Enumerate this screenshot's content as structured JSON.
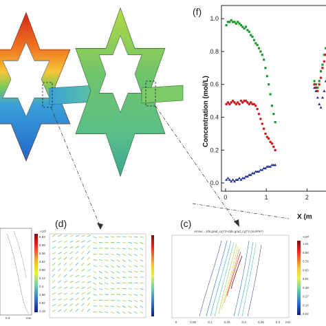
{
  "colors": {
    "hot": "#d7251d",
    "warm": "#f0a030",
    "mid": "#9ed14a",
    "cool": "#3aa0d8",
    "cold": "#2166c9",
    "series_green": "#1a9a2a",
    "series_red": "#cc1f1f",
    "series_blue": "#1c2c8c"
  },
  "panels": {
    "f": {
      "label": "(f)",
      "chart_data": {
        "type": "scatter",
        "ylabel": "Concentration (mol/L)",
        "xlabel": "X (m",
        "xticks": [
          "0",
          "1",
          "2"
        ],
        "yticks": [
          "0.0",
          "0.2",
          "0.4",
          "0.6",
          "0.8",
          "1.0"
        ],
        "xlim": [
          -0.1,
          2.6
        ],
        "ylim": [
          -0.05,
          1.08
        ],
        "series": [
          {
            "color": "series_green",
            "x": [
              0.02,
              0.06,
              0.1,
              0.14,
              0.18,
              0.22,
              0.26,
              0.3,
              0.34,
              0.38,
              0.42,
              0.46,
              0.5,
              0.54,
              0.58,
              0.62,
              0.66,
              0.7,
              0.74,
              0.78,
              0.82,
              0.86,
              0.9,
              0.94,
              0.98,
              1.02,
              1.06,
              1.1,
              1.14,
              1.18,
              1.22
            ],
            "y": [
              0.96,
              0.98,
              0.98,
              0.99,
              0.98,
              0.98,
              0.97,
              0.98,
              0.97,
              0.96,
              0.95,
              0.94,
              0.95,
              0.93,
              0.92,
              0.9,
              0.89,
              0.87,
              0.85,
              0.84,
              0.82,
              0.8,
              0.78,
              0.75,
              0.7,
              0.65,
              0.6,
              0.54,
              0.47,
              0.42,
              0.37
            ]
          },
          {
            "color": "series_red",
            "x": [
              0.02,
              0.06,
              0.1,
              0.14,
              0.18,
              0.22,
              0.26,
              0.3,
              0.34,
              0.38,
              0.42,
              0.46,
              0.5,
              0.54,
              0.58,
              0.62,
              0.66,
              0.7,
              0.74,
              0.78,
              0.82,
              0.86,
              0.9,
              0.94,
              0.98,
              1.02,
              1.06,
              1.1,
              1.14,
              1.18,
              1.22
            ],
            "y": [
              0.48,
              0.49,
              0.48,
              0.49,
              0.5,
              0.49,
              0.48,
              0.49,
              0.48,
              0.5,
              0.49,
              0.5,
              0.5,
              0.49,
              0.48,
              0.49,
              0.48,
              0.48,
              0.47,
              0.45,
              0.42,
              0.39,
              0.36,
              0.33,
              0.3,
              0.28,
              0.27,
              0.25,
              0.24,
              0.22,
              0.2
            ]
          },
          {
            "color": "series_blue",
            "x": [
              0.02,
              0.06,
              0.1,
              0.14,
              0.18,
              0.22,
              0.26,
              0.3,
              0.34,
              0.38,
              0.42,
              0.46,
              0.5,
              0.54,
              0.58,
              0.62,
              0.66,
              0.7,
              0.74,
              0.78,
              0.82,
              0.86,
              0.9,
              0.94,
              0.98,
              1.02,
              1.06,
              1.1,
              1.14,
              1.18,
              1.22
            ],
            "y": [
              0.02,
              0.03,
              0.02,
              0.01,
              0.02,
              0.01,
              0.02,
              0.02,
              0.03,
              0.02,
              0.03,
              0.03,
              0.04,
              0.04,
              0.05,
              0.05,
              0.06,
              0.06,
              0.07,
              0.07,
              0.07,
              0.08,
              0.08,
              0.09,
              0.09,
              0.1,
              0.1,
              0.1,
              0.11,
              0.11,
              0.11
            ]
          },
          {
            "color": "series_green",
            "x": [
              2.18,
              2.22,
              2.26,
              2.3,
              2.34,
              2.38,
              2.42,
              2.46,
              2.5,
              2.54
            ],
            "y": [
              0.62,
              0.6,
              0.58,
              0.62,
              0.68,
              0.72,
              0.78,
              0.82,
              0.86,
              0.88
            ]
          },
          {
            "color": "series_red",
            "x": [
              2.18,
              2.22,
              2.26,
              2.3,
              2.34,
              2.38,
              2.42,
              2.46,
              2.5,
              2.54
            ],
            "y": [
              0.6,
              0.58,
              0.56,
              0.6,
              0.64,
              0.7,
              0.74,
              0.78,
              0.8,
              0.82
            ]
          },
          {
            "color": "series_blue",
            "x": [
              2.18,
              2.22,
              2.26,
              2.3,
              2.34,
              2.38,
              2.42,
              2.46,
              2.5,
              2.54
            ],
            "y": [
              0.58,
              0.56,
              0.52,
              0.48,
              0.46,
              0.52,
              0.56,
              0.62,
              0.66,
              0.7
            ]
          }
        ]
      }
    },
    "d": {
      "label": "(d)"
    },
    "c": {
      "label": "(c)",
      "title": "Arrow: ...tds.grad_cy)^2+(tds.grad_cy)^2 (mol²/m⁸)",
      "colorbar_ticks": [
        "1.01",
        "0.88",
        "0.76",
        "0.63",
        "0.51",
        "0.39",
        "0.27",
        "0.14",
        "0.02"
      ],
      "exponent": "×10³",
      "xticks": [
        "0",
        "0.05",
        "0.1",
        "0.15",
        "0.2",
        "0.25",
        "0.3"
      ],
      "unit": "mm"
    },
    "left": {
      "colorbar_ticks": [
        "6.83",
        "6.09",
        "5.36",
        "4.62",
        "3.88",
        "3.14",
        "2.4",
        "1.66",
        "0.92",
        "0.18"
      ],
      "exponent": "×10³",
      "xtick": "0.3",
      "unit": "mm"
    }
  }
}
